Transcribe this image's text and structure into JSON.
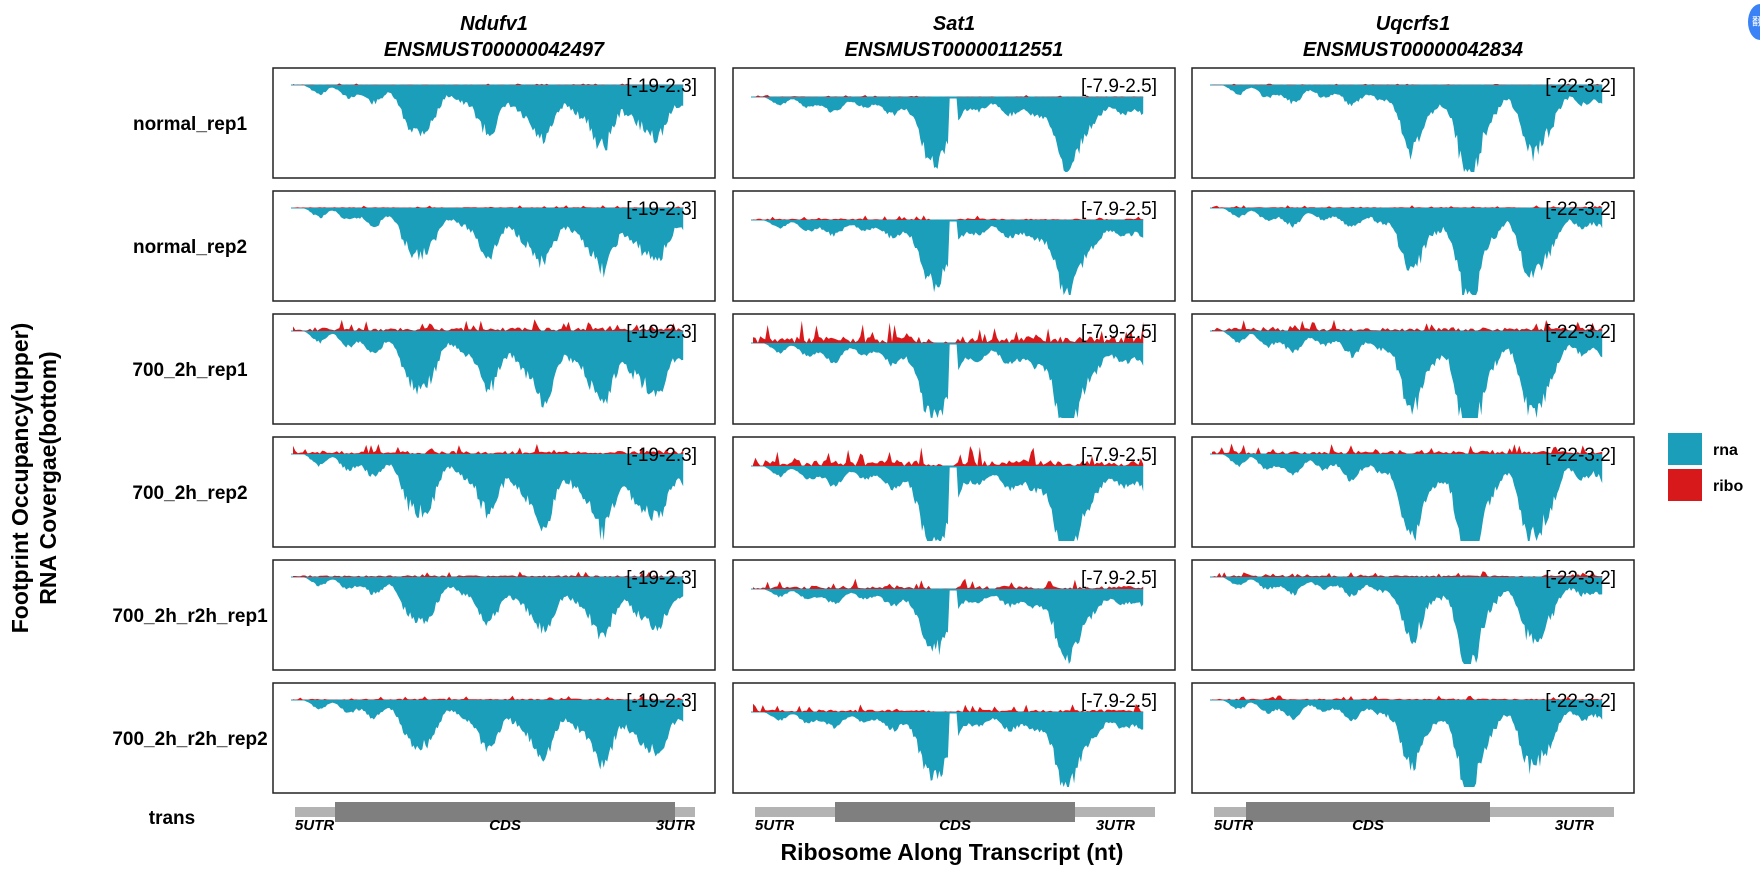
{
  "chart_data": {
    "type": "area",
    "xlabel": "Ribosome Along Transcript (nt)",
    "ylabel_lines": [
      "Footprint Occupancy(upper)",
      "RNA Covergae(bottom)"
    ],
    "legend": [
      {
        "name": "rna",
        "color": "#1a9eba"
      },
      {
        "name": "ribo",
        "color": "#d7191c"
      }
    ],
    "legend_position": "right",
    "track_label": "trans",
    "genes": [
      {
        "name": "Ndufv1",
        "transcript": "ENSMUST00000042497",
        "range": "[-19-2.3]",
        "structure": [
          {
            "label": "5UTR",
            "start": 0.0,
            "end": 0.1
          },
          {
            "label": "CDS",
            "start": 0.1,
            "end": 0.95
          },
          {
            "label": "3UTR",
            "start": 0.95,
            "end": 1.0
          }
        ],
        "rna_peaks": [
          [
            0.3,
            0.45
          ],
          [
            0.48,
            0.35
          ],
          [
            0.62,
            0.5
          ],
          [
            0.78,
            0.55
          ],
          [
            0.92,
            0.45
          ]
        ]
      },
      {
        "name": "Sat1",
        "transcript": "ENSMUST00000112551",
        "range": "[-7.9-2.5]",
        "structure": [
          {
            "label": "5UTR",
            "start": 0.0,
            "end": 0.2
          },
          {
            "label": "CDS",
            "start": 0.2,
            "end": 0.8
          },
          {
            "label": "3UTR",
            "start": 0.8,
            "end": 1.0
          }
        ],
        "rna_peaks": [
          [
            0.45,
            0.8
          ],
          [
            0.8,
            0.85
          ]
        ]
      },
      {
        "name": "Uqcrfs1",
        "transcript": "ENSMUST00000042834",
        "range": "[-22-3.2]",
        "structure": [
          {
            "label": "5UTR",
            "start": 0.0,
            "end": 0.08
          },
          {
            "label": "CDS",
            "start": 0.08,
            "end": 0.69
          },
          {
            "label": "3UTR",
            "start": 0.69,
            "end": 1.0
          }
        ],
        "rna_peaks": [
          [
            0.5,
            0.55
          ],
          [
            0.65,
            0.9
          ],
          [
            0.82,
            0.6
          ]
        ]
      }
    ],
    "samples": [
      {
        "name": "normal_rep1",
        "rna_scale": 0.95,
        "ribo_level": 0.05
      },
      {
        "name": "normal_rep2",
        "rna_scale": 0.95,
        "ribo_level": 0.15
      },
      {
        "name": "700_2h_rep1",
        "rna_scale": 1.15,
        "ribo_level": 0.9
      },
      {
        "name": "700_2h_rep2",
        "rna_scale": 1.2,
        "ribo_level": 0.8
      },
      {
        "name": "700_2h_r2h_rep1",
        "rna_scale": 0.9,
        "ribo_level": 0.4
      },
      {
        "name": "700_2h_r2h_rep2",
        "rna_scale": 0.95,
        "ribo_level": 0.3
      }
    ]
  }
}
